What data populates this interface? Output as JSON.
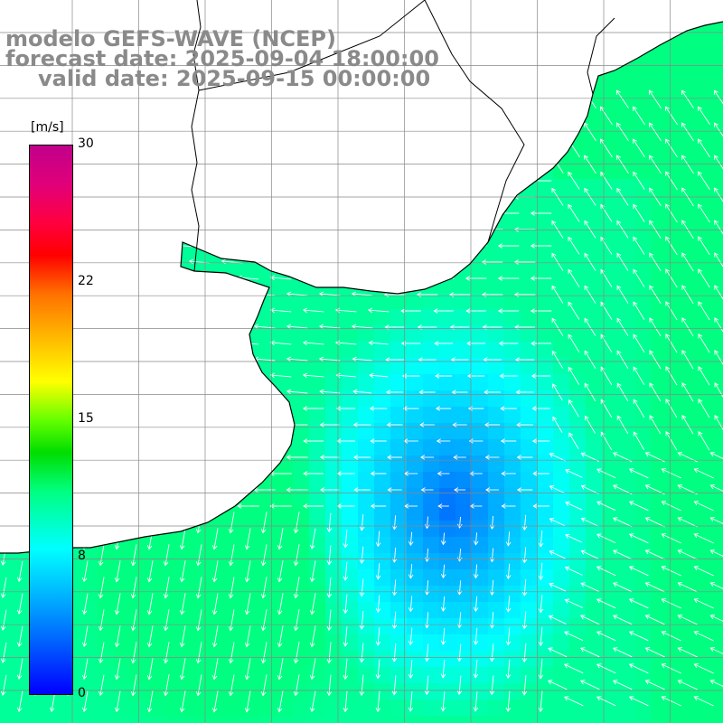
{
  "title": {
    "line1": "modelo GEFS-WAVE (NCEP)",
    "line2": "forecast date: 2025-09-04 18:00:00",
    "line3": "valid date: 2025-09-15 00:00:00"
  },
  "colorbar": {
    "unit": "[m/s]",
    "ticks": [
      "30",
      "22",
      "15",
      "8",
      "0"
    ],
    "min": 0,
    "max": 30,
    "colors": [
      "#0000ff",
      "#00b4ff",
      "#00ffff",
      "#00dd00",
      "#ffff00",
      "#ff7000",
      "#ff0000",
      "#c0008a"
    ]
  },
  "map": {
    "field": "wind speed and direction",
    "speed_range_shown_m_s": [
      0,
      11
    ],
    "dominant_flow": "onshore (north-westward) in the east, southward in the south-west",
    "grid_label_color": "#bbbbbb",
    "arrow_color": "#ffffff",
    "coastline_color": "#000000",
    "grid_color": "#888888"
  }
}
